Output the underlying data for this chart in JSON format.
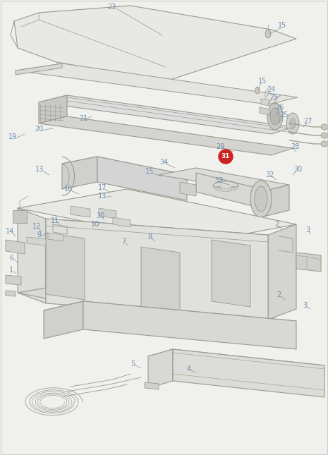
{
  "background_color": "#f0f0ec",
  "line_color": "#9a9a92",
  "line_color2": "#888880",
  "label_color": "#7090b0",
  "highlight_color": "#cc2222",
  "highlight_label": "31",
  "figsize": [
    4.65,
    6.45
  ],
  "dpi": 100,
  "xlim": [
    0,
    465
  ],
  "ylim": [
    0,
    645
  ]
}
